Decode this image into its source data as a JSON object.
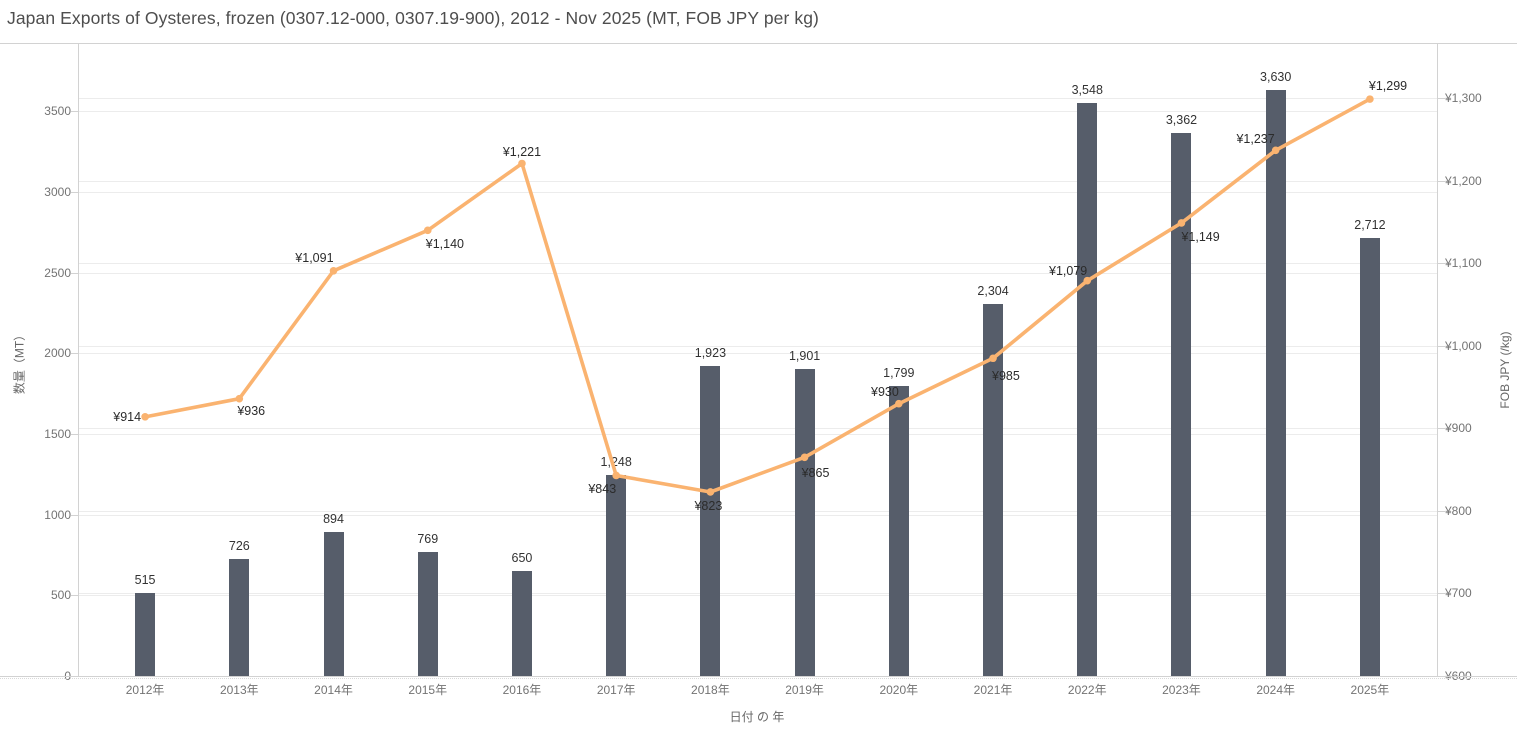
{
  "header": {
    "title": "Japan Exports of Oysteres, frozen (0307.12-000, 0307.19-900), 2012 - Nov 2025 (MT, FOB JPY per kg)"
  },
  "chart_data": {
    "type": "bar",
    "subtype": "combo-bar-line-dual-axis",
    "title": "Japan Exports of Oysteres, frozen (0307.12-000, 0307.19-900), 2012 - Nov 2025 (MT, FOB JPY per kg)",
    "categories": [
      "2012年",
      "2013年",
      "2014年",
      "2015年",
      "2016年",
      "2017年",
      "2018年",
      "2019年",
      "2020年",
      "2021年",
      "2022年",
      "2023年",
      "2024年",
      "2025年"
    ],
    "xlabel": "日付 の 年",
    "left_axis": {
      "title": "数量（MT）",
      "tick_values": [
        0,
        500,
        1000,
        1500,
        2000,
        2500,
        3000,
        3500
      ],
      "tick_labels": [
        "0",
        "500",
        "1000",
        "1500",
        "2000",
        "2500",
        "3000",
        "3500"
      ],
      "range": [
        0,
        3922
      ]
    },
    "right_axis": {
      "title": "FOB JPY (/kg)",
      "tick_values": [
        600,
        700,
        800,
        900,
        1000,
        1100,
        1200,
        1300
      ],
      "tick_labels": [
        "¥600",
        "¥700",
        "¥800",
        "¥900",
        "¥1,000",
        "¥1,100",
        "¥1,200",
        "¥1,300"
      ],
      "range": [
        600,
        1367
      ]
    },
    "series": [
      {
        "name": "数量（MT）",
        "type": "bar",
        "axis": "left",
        "color": "#565d6a",
        "values": [
          515,
          726,
          894,
          769,
          650,
          1248,
          1923,
          1901,
          1799,
          2304,
          3548,
          3362,
          3630,
          2712
        ],
        "labels": [
          "515",
          "726",
          "894",
          "769",
          "650",
          "1,248",
          "1,923",
          "1,901",
          "1,799",
          "2,304",
          "3,548",
          "3,362",
          "3,630",
          "2,712"
        ]
      },
      {
        "name": "FOB JPY (/kg)",
        "type": "line",
        "axis": "right",
        "color": "#fab370",
        "values": [
          914,
          936,
          1091,
          1140,
          1221,
          843,
          823,
          865,
          930,
          985,
          1079,
          1149,
          1237,
          1299
        ],
        "labels": [
          "¥914",
          "¥936",
          "¥1,091",
          "¥1,140",
          "¥1,221",
          "¥843",
          "¥823",
          "¥865",
          "¥930",
          "¥985",
          "¥1,079",
          "¥1,149",
          "¥1,237",
          "¥1,299"
        ]
      }
    ],
    "grid": true,
    "legend": "none"
  },
  "colors": {
    "bar": "#565d6a",
    "line": "#fab370",
    "gridline": "#ececec",
    "axis_line": "#d2d2d2",
    "tick_text": "#737373",
    "title_text": "#4e4e4e"
  }
}
